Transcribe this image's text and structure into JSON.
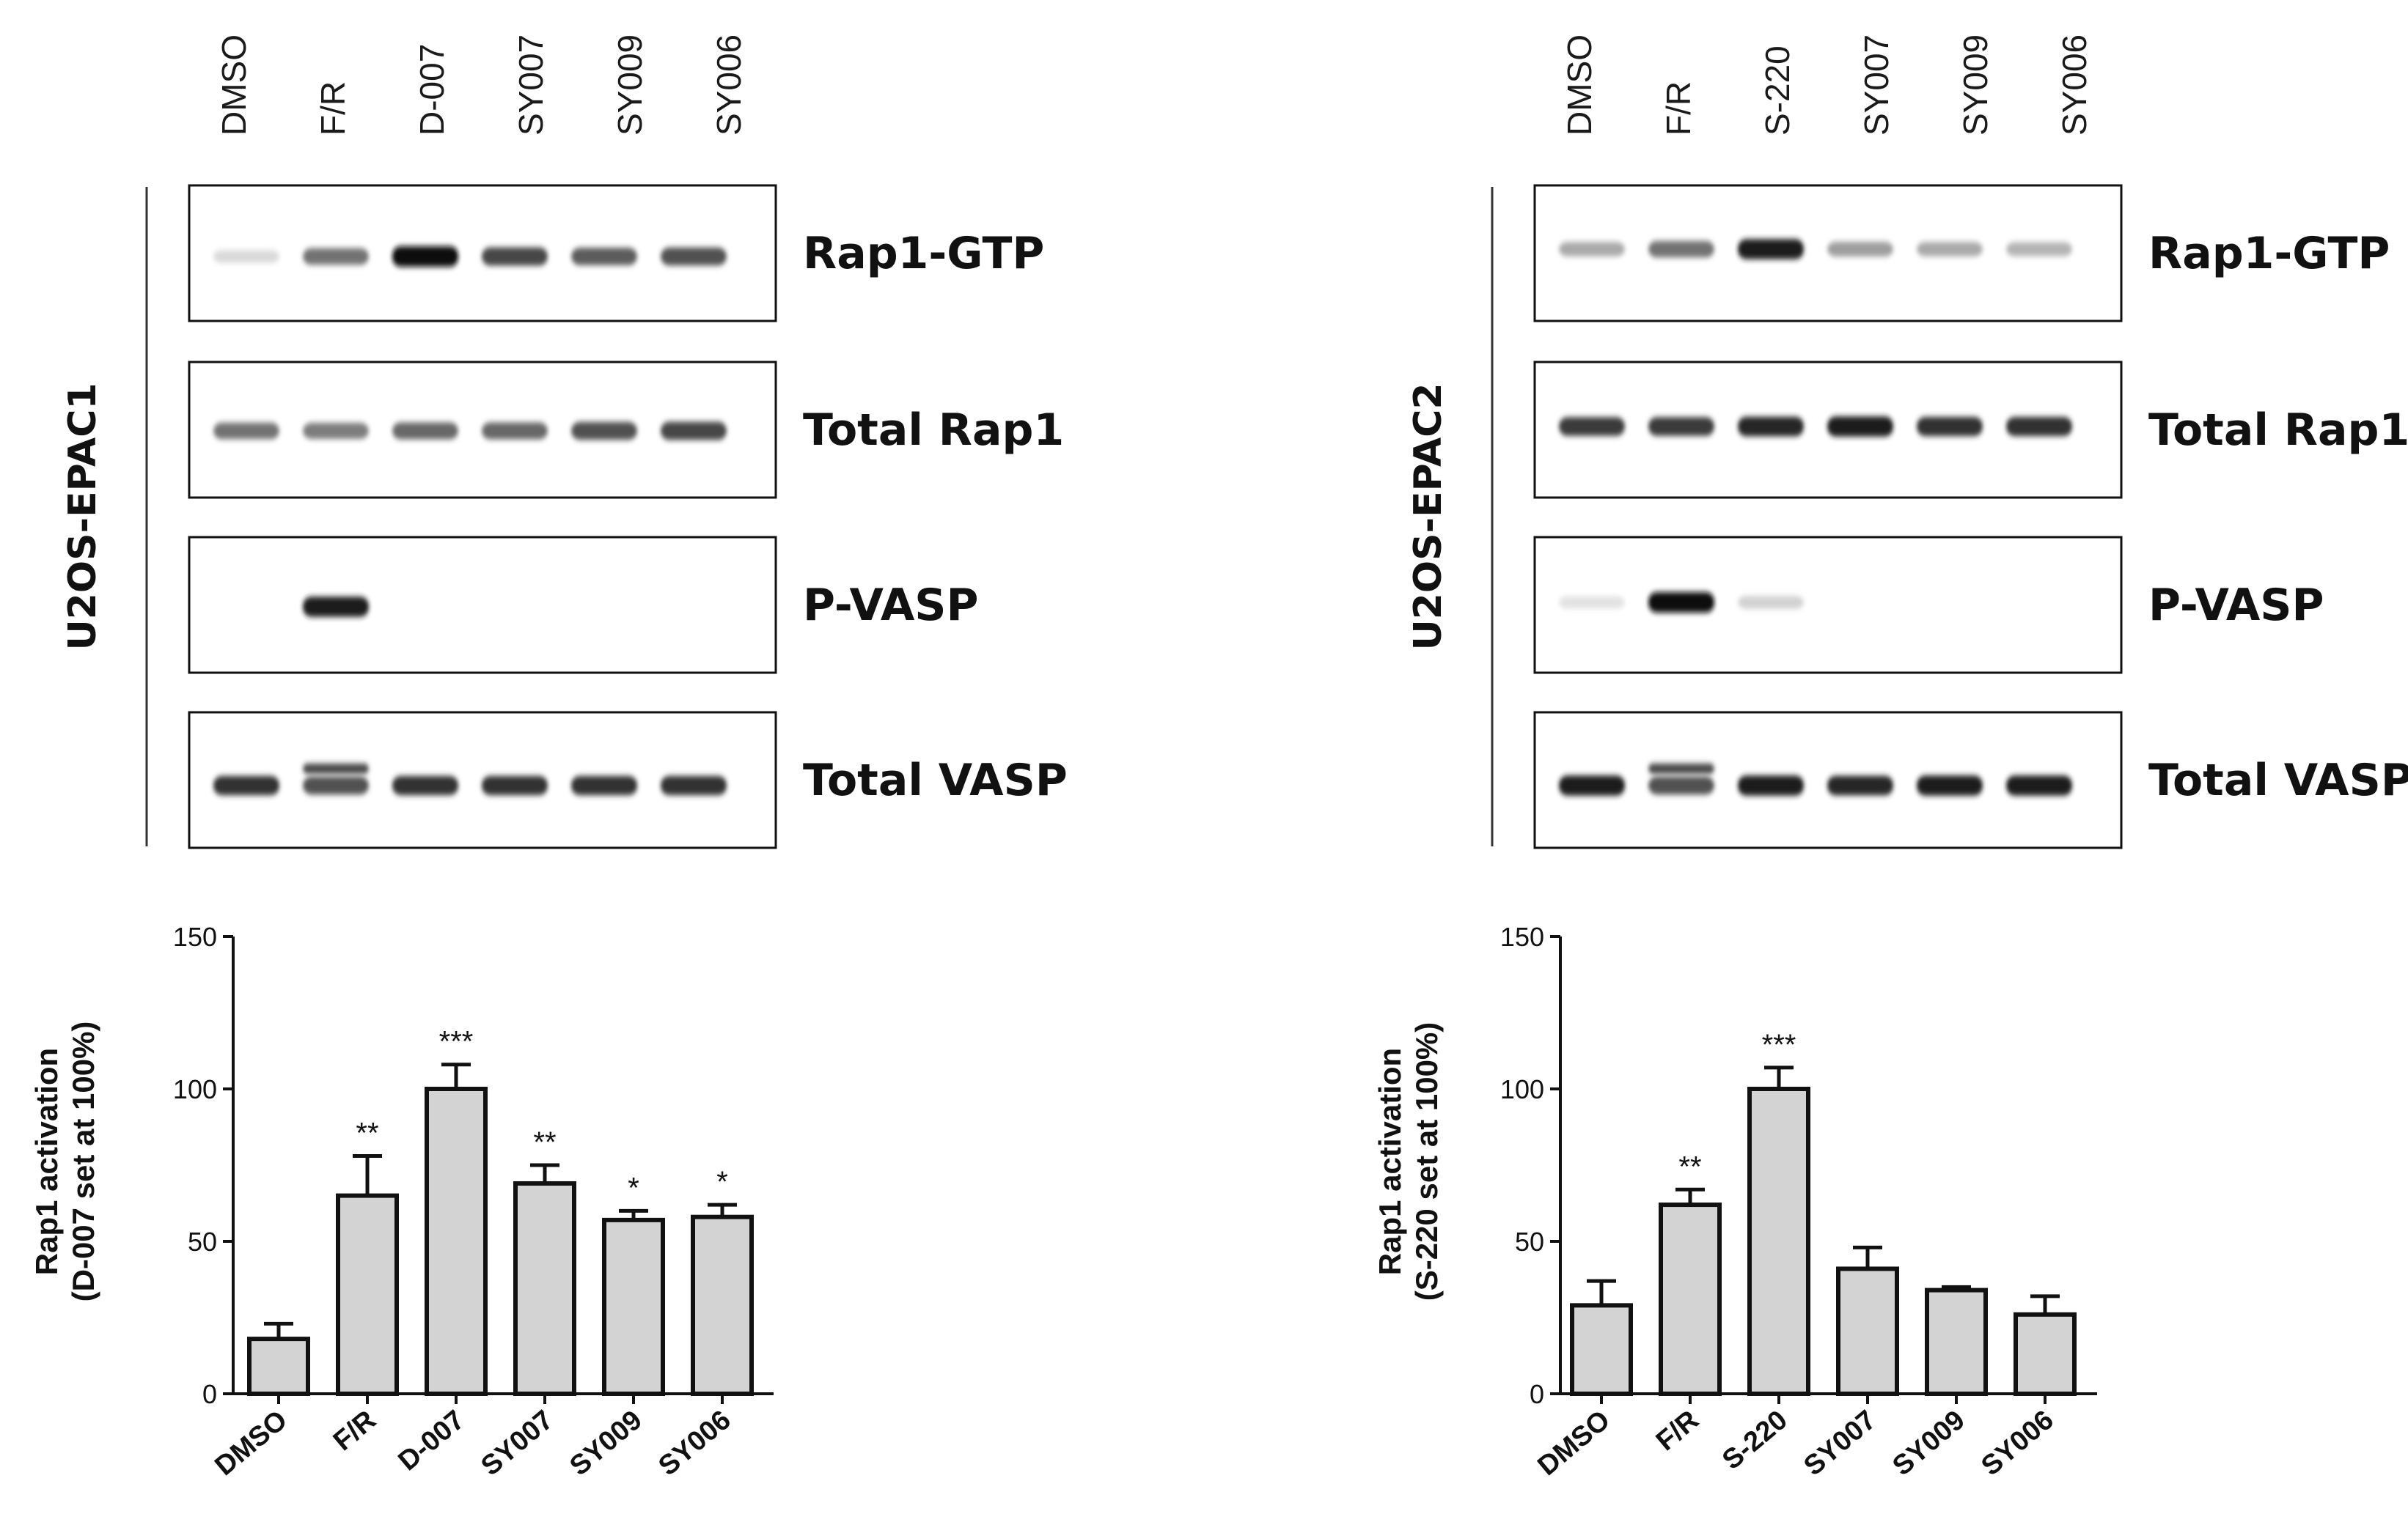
{
  "panels": [
    {
      "cell_line": "U2OS-EPAC1",
      "lanes": [
        "DMSO",
        "F/R",
        "D-007",
        "SY007",
        "SY009",
        "SY006"
      ],
      "blots": [
        {
          "protein": "Rap1-GTP",
          "intensity": [
            0.08,
            0.55,
            1.0,
            0.75,
            0.65,
            0.7
          ],
          "double_lane": -1
        },
        {
          "protein": "Total Rap1",
          "intensity": [
            0.55,
            0.5,
            0.6,
            0.6,
            0.7,
            0.75
          ],
          "double_lane": -1
        },
        {
          "protein": "P-VASP",
          "intensity": [
            0,
            0.95,
            0,
            0,
            0,
            0
          ],
          "double_lane": -1
        },
        {
          "protein": "Total VASP",
          "intensity": [
            0.85,
            0.7,
            0.85,
            0.85,
            0.85,
            0.85
          ],
          "double_lane": 1
        }
      ]
    },
    {
      "cell_line": "U2OS-EPAC2",
      "lanes": [
        "DMSO",
        "F/R",
        "S-220",
        "SY007",
        "SY009",
        "SY006"
      ],
      "blots": [
        {
          "protein": "Rap1-GTP",
          "intensity": [
            0.3,
            0.55,
            0.95,
            0.35,
            0.3,
            0.25
          ],
          "double_lane": -1
        },
        {
          "protein": "Total Rap1",
          "intensity": [
            0.8,
            0.8,
            0.9,
            0.95,
            0.85,
            0.85
          ],
          "double_lane": -1
        },
        {
          "protein": "P-VASP",
          "intensity": [
            0.04,
            1.0,
            0.12,
            0,
            0,
            0
          ],
          "double_lane": -1
        },
        {
          "protein": "Total VASP",
          "intensity": [
            0.95,
            0.7,
            0.95,
            0.9,
            0.95,
            0.95
          ],
          "double_lane": 1
        }
      ]
    }
  ],
  "chart_data": [
    {
      "type": "bar",
      "categories": [
        "DMSO",
        "F/R",
        "D-007",
        "SY007",
        "SY009",
        "SY006"
      ],
      "values": [
        18,
        65,
        100,
        69,
        57,
        58
      ],
      "errors": [
        5,
        13,
        8,
        6,
        3,
        4
      ],
      "significance": [
        "",
        "**",
        "***",
        "**",
        "*",
        "*"
      ],
      "ylabel": "Rap1 activation",
      "ylabel2": "(D-007  set at 100%)",
      "ylim": [
        0,
        150
      ],
      "yticks": [
        "0",
        "50",
        "100",
        "150"
      ],
      "bar_color": "#d3d3d3"
    },
    {
      "type": "bar",
      "categories": [
        "DMSO",
        "F/R",
        "S-220",
        "SY007",
        "SY009",
        "SY006"
      ],
      "values": [
        29,
        62,
        100,
        41,
        34,
        26
      ],
      "errors": [
        8,
        5,
        7,
        7,
        1,
        6
      ],
      "significance": [
        "",
        "**",
        "***",
        "",
        "",
        ""
      ],
      "ylabel": "Rap1 activation",
      "ylabel2": "(S-220 set at 100%)",
      "ylim": [
        0,
        150
      ],
      "yticks": [
        "0",
        "50",
        "100",
        "150"
      ],
      "bar_color": "#d3d3d3"
    }
  ]
}
